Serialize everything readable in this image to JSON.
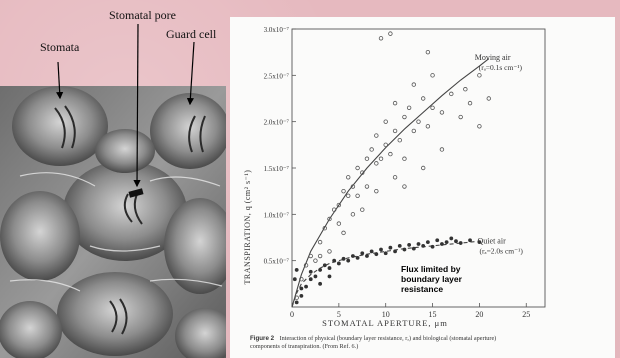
{
  "labels": {
    "stomata": "Stomata",
    "stomatal_pore": "Stomatal pore",
    "guard_cell": "Guard cell"
  },
  "chart_data": {
    "type": "scatter",
    "ylabel": "TRANSPIRATION, q (cm² s⁻¹)",
    "xlabel": "STOMATAL APERTURE, μm",
    "x_ticks": [
      0,
      5,
      10,
      15,
      20,
      25
    ],
    "y_ticks": [
      {
        "value": 0.5,
        "label": "0.5x10⁻⁷"
      },
      {
        "value": 1.0,
        "label": "1.0x10⁻⁷"
      },
      {
        "value": 1.5,
        "label": "1.5x10⁻⁷"
      },
      {
        "value": 2.0,
        "label": "2.0x10⁻⁷"
      },
      {
        "value": 2.5,
        "label": "2.5x10⁻⁷"
      },
      {
        "value": 3.0,
        "label": "3.0x10⁻⁷"
      }
    ],
    "xlim": [
      0,
      27
    ],
    "ylim": [
      0,
      3.0
    ],
    "y_scale": "x10^-7",
    "series": [
      {
        "name": "Moving air",
        "marker": "open-circle",
        "curve_label": "Moving air",
        "curve_label2": "(rₐ=0.1s cm⁻¹)",
        "curve": [
          [
            0,
            0
          ],
          [
            1,
            0.35
          ],
          [
            2,
            0.6
          ],
          [
            4,
            0.95
          ],
          [
            6,
            1.25
          ],
          [
            8,
            1.5
          ],
          [
            10,
            1.72
          ],
          [
            12,
            1.92
          ],
          [
            14,
            2.1
          ],
          [
            16,
            2.28
          ],
          [
            18,
            2.45
          ],
          [
            20,
            2.6
          ],
          [
            21,
            2.68
          ]
        ],
        "points": [
          [
            0.5,
            0.1
          ],
          [
            1,
            0.3
          ],
          [
            1.5,
            0.45
          ],
          [
            2,
            0.55
          ],
          [
            2.5,
            0.5
          ],
          [
            3,
            0.7
          ],
          [
            3.5,
            0.85
          ],
          [
            4,
            0.95
          ],
          [
            4.5,
            1.05
          ],
          [
            5,
            1.1
          ],
          [
            5,
            0.9
          ],
          [
            5.5,
            1.25
          ],
          [
            6,
            1.2
          ],
          [
            6,
            1.4
          ],
          [
            6.5,
            1.3
          ],
          [
            7,
            1.5
          ],
          [
            7,
            1.2
          ],
          [
            7.5,
            1.45
          ],
          [
            8,
            1.6
          ],
          [
            8,
            1.3
          ],
          [
            8.5,
            1.7
          ],
          [
            9,
            1.55
          ],
          [
            9,
            1.85
          ],
          [
            9.5,
            1.6
          ],
          [
            10,
            1.75
          ],
          [
            10,
            2.0
          ],
          [
            10.5,
            1.65
          ],
          [
            11,
            1.9
          ],
          [
            11,
            2.2
          ],
          [
            11.5,
            1.8
          ],
          [
            12,
            2.05
          ],
          [
            12,
            1.6
          ],
          [
            12.5,
            2.15
          ],
          [
            13,
            1.9
          ],
          [
            13,
            2.4
          ],
          [
            13.5,
            2.0
          ],
          [
            14,
            2.25
          ],
          [
            14.5,
            1.95
          ],
          [
            15,
            2.5
          ],
          [
            15,
            2.15
          ],
          [
            16,
            2.1
          ],
          [
            16,
            1.7
          ],
          [
            17,
            2.3
          ],
          [
            18,
            2.05
          ],
          [
            18.5,
            2.35
          ],
          [
            19,
            2.2
          ],
          [
            20,
            1.95
          ],
          [
            20,
            2.5
          ],
          [
            21,
            2.25
          ],
          [
            9.5,
            2.9
          ],
          [
            10.5,
            2.95
          ],
          [
            14.5,
            2.75
          ],
          [
            5.5,
            0.8
          ],
          [
            7.5,
            1.05
          ],
          [
            11,
            1.4
          ],
          [
            9,
            1.25
          ],
          [
            6.5,
            1.0
          ],
          [
            4,
            0.6
          ],
          [
            3,
            0.55
          ],
          [
            12,
            1.3
          ],
          [
            14,
            1.5
          ]
        ]
      },
      {
        "name": "Quiet air",
        "marker": "filled-circle",
        "curve_label": "Quiet air",
        "curve_label2": "(rₐ=2.0s cm⁻¹)",
        "curve": [
          [
            0,
            0
          ],
          [
            0.5,
            0.15
          ],
          [
            1,
            0.25
          ],
          [
            2,
            0.35
          ],
          [
            3,
            0.42
          ],
          [
            4,
            0.47
          ],
          [
            6,
            0.53
          ],
          [
            8,
            0.57
          ],
          [
            10,
            0.6
          ],
          [
            12,
            0.63
          ],
          [
            14,
            0.65
          ],
          [
            16,
            0.67
          ],
          [
            18,
            0.69
          ],
          [
            20,
            0.71
          ]
        ],
        "points": [
          [
            0.5,
            0.05
          ],
          [
            1,
            0.12
          ],
          [
            1,
            0.2
          ],
          [
            1.5,
            0.22
          ],
          [
            2,
            0.3
          ],
          [
            2,
            0.38
          ],
          [
            2.5,
            0.33
          ],
          [
            3,
            0.4
          ],
          [
            3.5,
            0.45
          ],
          [
            4,
            0.42
          ],
          [
            4.5,
            0.5
          ],
          [
            5,
            0.47
          ],
          [
            5.5,
            0.52
          ],
          [
            6,
            0.5
          ],
          [
            6.5,
            0.55
          ],
          [
            7,
            0.53
          ],
          [
            7.5,
            0.58
          ],
          [
            8,
            0.55
          ],
          [
            8.5,
            0.6
          ],
          [
            9,
            0.57
          ],
          [
            9.5,
            0.62
          ],
          [
            10,
            0.58
          ],
          [
            10.5,
            0.64
          ],
          [
            11,
            0.6
          ],
          [
            11.5,
            0.66
          ],
          [
            12,
            0.62
          ],
          [
            12.5,
            0.67
          ],
          [
            13,
            0.63
          ],
          [
            13.5,
            0.68
          ],
          [
            14,
            0.66
          ],
          [
            14.5,
            0.7
          ],
          [
            15,
            0.65
          ],
          [
            15.5,
            0.72
          ],
          [
            16,
            0.68
          ],
          [
            16.5,
            0.7
          ],
          [
            17,
            0.74
          ],
          [
            17.5,
            0.71
          ],
          [
            18,
            0.69
          ],
          [
            19,
            0.72
          ],
          [
            20,
            0.7
          ],
          [
            3,
            0.25
          ],
          [
            4,
            0.33
          ],
          [
            0.3,
            0.3
          ],
          [
            0.5,
            0.4
          ]
        ]
      }
    ],
    "annotation": [
      "Flux limited by",
      "boundary layer",
      "resistance"
    ],
    "caption_bold": "Figure 2",
    "caption_line1": "Interaction of physical (boundary layer resistance, rₐ) and biological (stomatal aperture)",
    "caption_line2": "components of transpiration. (From Ref. 6.)"
  }
}
